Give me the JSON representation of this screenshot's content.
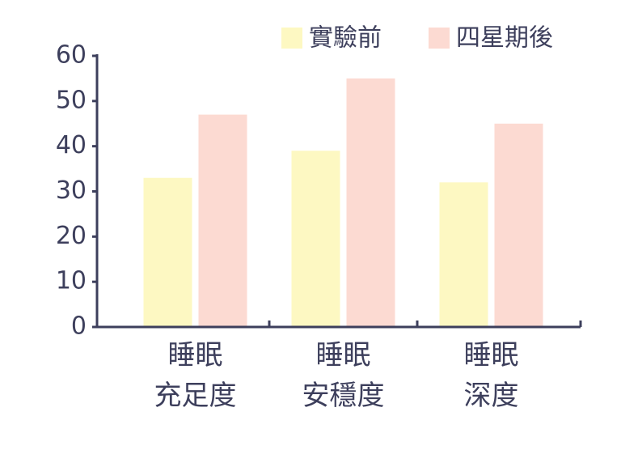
{
  "chart_data": {
    "type": "bar",
    "categories": [
      [
        "睡眠",
        "充足度"
      ],
      [
        "睡眠",
        "安穩度"
      ],
      [
        "睡眠",
        "深度"
      ]
    ],
    "series": [
      {
        "name": "實驗前",
        "color": "#fdf8c2",
        "values": [
          33,
          39,
          32
        ]
      },
      {
        "name": "四星期後",
        "color": "#fcdad2",
        "values": [
          47,
          55,
          45
        ]
      }
    ],
    "ylim": [
      0,
      60
    ],
    "yticks": [
      0,
      10,
      20,
      30,
      40,
      50,
      60
    ],
    "grid": false,
    "legend": "top-right"
  }
}
